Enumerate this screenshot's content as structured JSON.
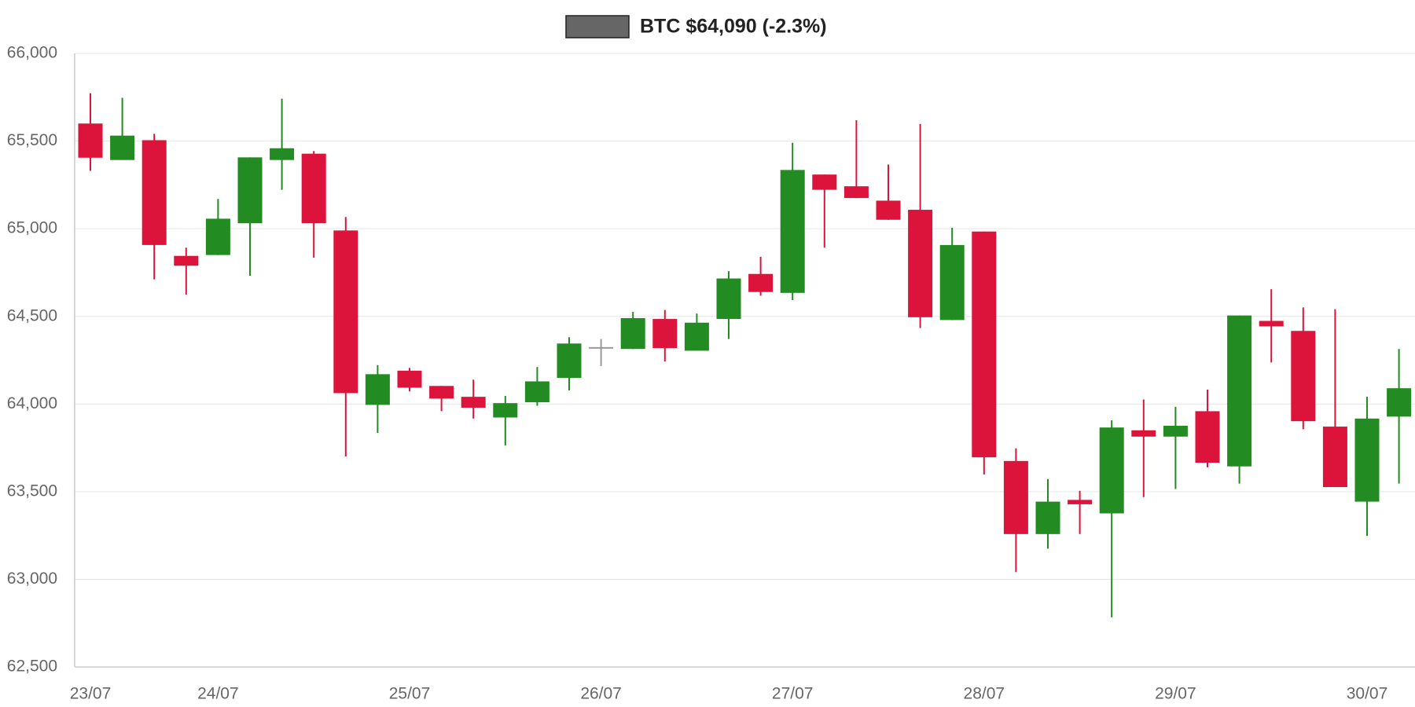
{
  "chart_data": {
    "type": "candlestick",
    "categories": [
      "23/07",
      null,
      null,
      null,
      "24/07",
      null,
      null,
      null,
      null,
      null,
      "25/07",
      null,
      null,
      null,
      null,
      null,
      "26/07",
      null,
      null,
      null,
      null,
      null,
      "27/07",
      null,
      null,
      null,
      null,
      null,
      "28/07",
      null,
      null,
      null,
      null,
      null,
      "29/07",
      null,
      null,
      null,
      null,
      null,
      "30/07",
      null
    ],
    "series": [
      {
        "name": "BTC $64,090 (-2.3%)",
        "color": "#666666",
        "up_color": "#228b22",
        "down_color": "#dc143c",
        "neutral_color": "#999999",
        "open": [
          65600,
          65392,
          65505,
          64845,
          64850,
          65031,
          65392,
          65428,
          64990,
          63995,
          64190,
          64103,
          64041,
          63923,
          64010,
          64149,
          64320,
          64314,
          64485,
          64304,
          64485,
          64742,
          64634,
          65309,
          65242,
          65160,
          65108,
          64479,
          64984,
          63675,
          63258,
          63453,
          63376,
          63850,
          63814,
          63959,
          63644,
          64474,
          64417,
          63871,
          63443,
          63928
        ],
        "high": [
          65773,
          65747,
          65541,
          64892,
          65170,
          65407,
          65742,
          65443,
          65067,
          64222,
          64206,
          64103,
          64139,
          64046,
          64211,
          64381,
          64371,
          64526,
          64536,
          64516,
          64758,
          64840,
          65490,
          65309,
          65619,
          65366,
          65598,
          65005,
          64984,
          63747,
          63572,
          63505,
          63907,
          64026,
          63984,
          64082,
          64505,
          64655,
          64551,
          64541,
          64041,
          64314
        ],
        "low": [
          65330,
          65392,
          64711,
          64624,
          64850,
          64732,
          65222,
          64835,
          63701,
          63835,
          64072,
          63959,
          63917,
          63763,
          63990,
          64077,
          64216,
          64314,
          64242,
          64304,
          64371,
          64618,
          64593,
          64892,
          65175,
          65051,
          64433,
          64479,
          63598,
          63041,
          63175,
          63258,
          62783,
          63469,
          63515,
          63639,
          63546,
          64237,
          63856,
          63526,
          63247,
          63546
        ],
        "close": [
          65405,
          65531,
          64907,
          64789,
          65057,
          65407,
          65459,
          65031,
          64062,
          64170,
          64093,
          64031,
          63979,
          64005,
          64129,
          64345,
          64320,
          64490,
          64319,
          64464,
          64716,
          64639,
          65335,
          65222,
          65175,
          65051,
          64495,
          64907,
          63696,
          63258,
          63443,
          63428,
          63866,
          63814,
          63876,
          63665,
          64505,
          64443,
          63902,
          63526,
          63917,
          64090
        ]
      }
    ],
    "ylim": [
      62500,
      66000
    ],
    "yticks": [
      {
        "value": 62500,
        "label": "62,500"
      },
      {
        "value": 63000,
        "label": "63,000"
      },
      {
        "value": 63500,
        "label": "63,500"
      },
      {
        "value": 64000,
        "label": "64,000"
      },
      {
        "value": 64500,
        "label": "64,500"
      },
      {
        "value": 65000,
        "label": "65,000"
      },
      {
        "value": 65500,
        "label": "65,500"
      },
      {
        "value": 66000,
        "label": "66,000"
      }
    ],
    "grid": true
  }
}
